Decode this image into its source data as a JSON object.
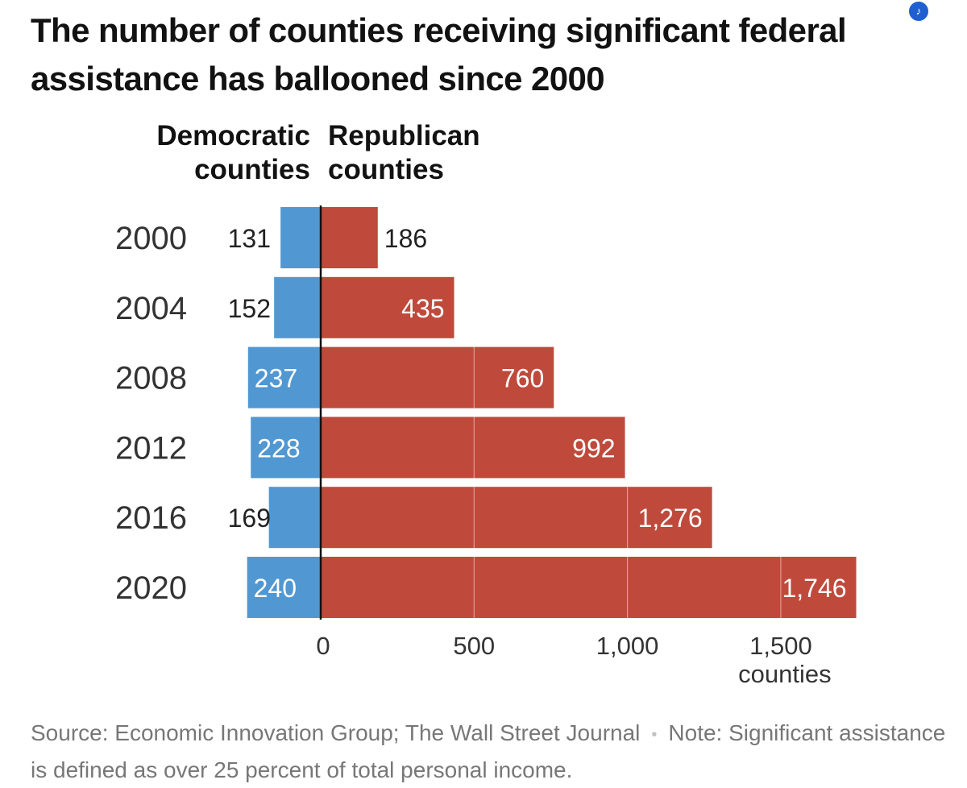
{
  "title": "The number of counties receiving significant federal assistance has ballooned since 2000",
  "badge_icon": "audio-icon",
  "legend": {
    "dem_line1": "Democratic",
    "dem_line2": "counties",
    "rep_line1": "Republican",
    "rep_line2": "counties"
  },
  "colors": {
    "democratic": "#5198d3",
    "republican": "#bf4a3c"
  },
  "chart_data": {
    "type": "bar",
    "orientation": "horizontal-diverging",
    "categories": [
      "2000",
      "2004",
      "2008",
      "2012",
      "2016",
      "2020"
    ],
    "series": [
      {
        "name": "Democratic counties",
        "values": [
          131,
          152,
          237,
          228,
          169,
          240
        ]
      },
      {
        "name": "Republican counties",
        "values": [
          186,
          435,
          760,
          992,
          1276,
          1746
        ]
      }
    ],
    "value_labels": {
      "democratic": [
        "131",
        "152",
        "237",
        "228",
        "169",
        "240"
      ],
      "republican": [
        "186",
        "435",
        "760",
        "992",
        "1,276",
        "1,746"
      ]
    },
    "x_ticks": [
      0,
      500,
      1000,
      1500
    ],
    "x_tick_labels": [
      "0",
      "500",
      "1,000",
      "1,500"
    ],
    "x_unit_label": "counties",
    "xlim": [
      -240,
      1746
    ],
    "grid": true
  },
  "footer": {
    "source": "Source: Economic Innovation Group; The Wall Street Journal",
    "separator": "•",
    "note": "Note: Significant assistance is defined as over 25 percent of total personal income."
  }
}
